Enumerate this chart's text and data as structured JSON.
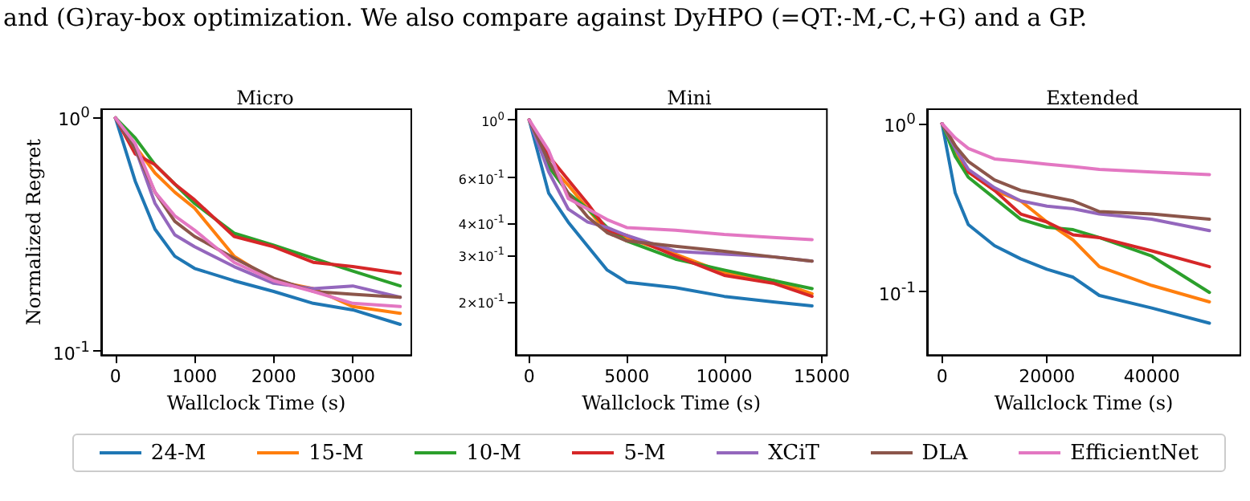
{
  "chart_data": [
    {
      "type": "line",
      "title": "Micro",
      "xlabel": "Wallclock Time (s)",
      "ylabel": "Normalized Regret",
      "annotations": [
        "and (G)ray-box optimization. We also compare against DyHPO (=QT:-M,-C,+G) and a GP."
      ],
      "legend": "bottom",
      "log": "y",
      "grid": false,
      "marker": "none",
      "line_style": "solid",
      "x": [
        0,
        250,
        500,
        750,
        1000,
        1500,
        2000,
        2500,
        3000,
        3600
      ],
      "xlim": [
        -180,
        3740
      ],
      "xticks": [
        0,
        1000,
        2000,
        3000
      ],
      "ylim": [
        0.096,
        1.09
      ],
      "yticks": [
        {
          "value": 1,
          "label": "10$^{0}$"
        },
        {
          "value": 0.1,
          "label": "10$^{-1}$"
        }
      ],
      "series": [
        {
          "name": "24-M",
          "color": "#1f77b4",
          "values": [
            1.0,
            0.535,
            0.333,
            0.255,
            0.226,
            0.2,
            0.18,
            0.16,
            0.15,
            0.13
          ]
        },
        {
          "name": "15-M",
          "color": "#ff7f0e",
          "values": [
            1.0,
            0.755,
            0.58,
            0.48,
            0.41,
            0.255,
            0.2,
            0.185,
            0.155,
            0.145
          ]
        },
        {
          "name": "10-M",
          "color": "#2ca02c",
          "values": [
            1.0,
            0.82,
            0.63,
            0.52,
            0.43,
            0.32,
            0.284,
            0.25,
            0.22,
            0.19
          ]
        },
        {
          "name": "5-M",
          "color": "#d62728",
          "values": [
            1.0,
            0.7,
            0.63,
            0.52,
            0.445,
            0.31,
            0.28,
            0.24,
            0.23,
            0.215
          ]
        },
        {
          "name": "XCiT",
          "color": "#9467bd",
          "values": [
            1.0,
            0.74,
            0.43,
            0.315,
            0.28,
            0.23,
            0.195,
            0.185,
            0.19,
            0.17
          ]
        },
        {
          "name": "DLA",
          "color": "#8c564b",
          "values": [
            1.0,
            0.74,
            0.48,
            0.36,
            0.31,
            0.25,
            0.205,
            0.18,
            0.175,
            0.17
          ]
        },
        {
          "name": "EfficientNet",
          "color": "#e377c2",
          "values": [
            1.0,
            0.775,
            0.48,
            0.38,
            0.33,
            0.24,
            0.2,
            0.18,
            0.16,
            0.155
          ]
        }
      ]
    },
    {
      "type": "line",
      "title": "Mini",
      "xlabel": "Wallclock Time (s)",
      "log": "y",
      "grid": false,
      "marker": "none",
      "line_style": "solid",
      "x": [
        0,
        1000,
        2000,
        3000,
        4000,
        5000,
        7500,
        10000,
        12500,
        14500
      ],
      "xlim": [
        -690,
        15260
      ],
      "xticks": [
        0,
        5000,
        10000,
        15000
      ],
      "ylim": [
        0.125,
        1.1
      ],
      "yticks": [
        {
          "value": 1,
          "label": "10$^{0}$"
        },
        {
          "value": 0.6,
          "label": "6×10$^{-1}$"
        },
        {
          "value": 0.4,
          "label": "4×10$^{-1}$"
        },
        {
          "value": 0.3,
          "label": "3×10$^{-1}$"
        },
        {
          "value": 0.2,
          "label": "2×10$^{-1}$"
        }
      ],
      "series": [
        {
          "color": "#1f77b4",
          "values": [
            1.0,
            0.523,
            0.405,
            0.327,
            0.265,
            0.238,
            0.227,
            0.21,
            0.2,
            0.193
          ]
        },
        {
          "color": "#ff7f0e",
          "values": [
            1.0,
            0.678,
            0.562,
            0.455,
            0.369,
            0.352,
            0.305,
            0.259,
            0.242,
            0.215
          ]
        },
        {
          "color": "#2ca02c",
          "values": [
            1.0,
            0.662,
            0.523,
            0.455,
            0.386,
            0.343,
            0.292,
            0.265,
            0.242,
            0.225
          ]
        },
        {
          "color": "#d62728",
          "values": [
            1.0,
            0.727,
            0.589,
            0.477,
            0.377,
            0.36,
            0.3,
            0.253,
            0.236,
            0.21
          ]
        },
        {
          "color": "#9467bd",
          "values": [
            1.0,
            0.632,
            0.455,
            0.405,
            0.386,
            0.36,
            0.313,
            0.305,
            0.298,
            0.287
          ]
        },
        {
          "color": "#8c564b",
          "values": [
            1.0,
            0.694,
            0.523,
            0.424,
            0.369,
            0.343,
            0.327,
            0.313,
            0.298,
            0.287
          ]
        },
        {
          "color": "#e377c2",
          "values": [
            1.0,
            0.762,
            0.499,
            0.455,
            0.414,
            0.386,
            0.377,
            0.363,
            0.354,
            0.347
          ]
        }
      ]
    },
    {
      "type": "line",
      "title": "Extended",
      "xlabel": "Wallclock Time (s)",
      "log": "y",
      "grid": false,
      "marker": "none",
      "line_style": "solid",
      "x": [
        0,
        2500,
        5000,
        10000,
        15000,
        20000,
        25000,
        30000,
        40000,
        51000
      ],
      "xlim": [
        -2870,
        56900
      ],
      "xticks": [
        0,
        20000,
        40000
      ],
      "ylim": [
        0.042,
        1.22
      ],
      "yticks": [
        {
          "value": 1,
          "label": "10$^{0}$"
        },
        {
          "value": 0.1,
          "label": "10$^{-1}$"
        }
      ],
      "series": [
        {
          "color": "#1f77b4",
          "values": [
            1.0,
            0.387,
            0.251,
            0.188,
            0.157,
            0.136,
            0.122,
            0.095,
            0.08,
            0.065
          ]
        },
        {
          "color": "#ff7f0e",
          "values": [
            1.0,
            0.688,
            0.516,
            0.401,
            0.347,
            0.26,
            0.203,
            0.141,
            0.109,
            0.087
          ]
        },
        {
          "color": "#2ca02c",
          "values": [
            1.0,
            0.64,
            0.48,
            0.36,
            0.27,
            0.242,
            0.234,
            0.21,
            0.163,
            0.099
          ]
        },
        {
          "color": "#d62728",
          "values": [
            1.0,
            0.739,
            0.516,
            0.401,
            0.29,
            0.26,
            0.218,
            0.21,
            0.175,
            0.141
          ]
        },
        {
          "color": "#9467bd",
          "values": [
            1.0,
            0.713,
            0.535,
            0.416,
            0.347,
            0.323,
            0.312,
            0.29,
            0.27,
            0.231
          ]
        },
        {
          "color": "#8c564b",
          "values": [
            1.0,
            0.739,
            0.596,
            0.463,
            0.401,
            0.373,
            0.347,
            0.3,
            0.29,
            0.27
          ]
        },
        {
          "color": "#e377c2",
          "values": [
            1.0,
            0.823,
            0.713,
            0.617,
            0.596,
            0.574,
            0.555,
            0.535,
            0.516,
            0.498
          ]
        }
      ]
    }
  ]
}
